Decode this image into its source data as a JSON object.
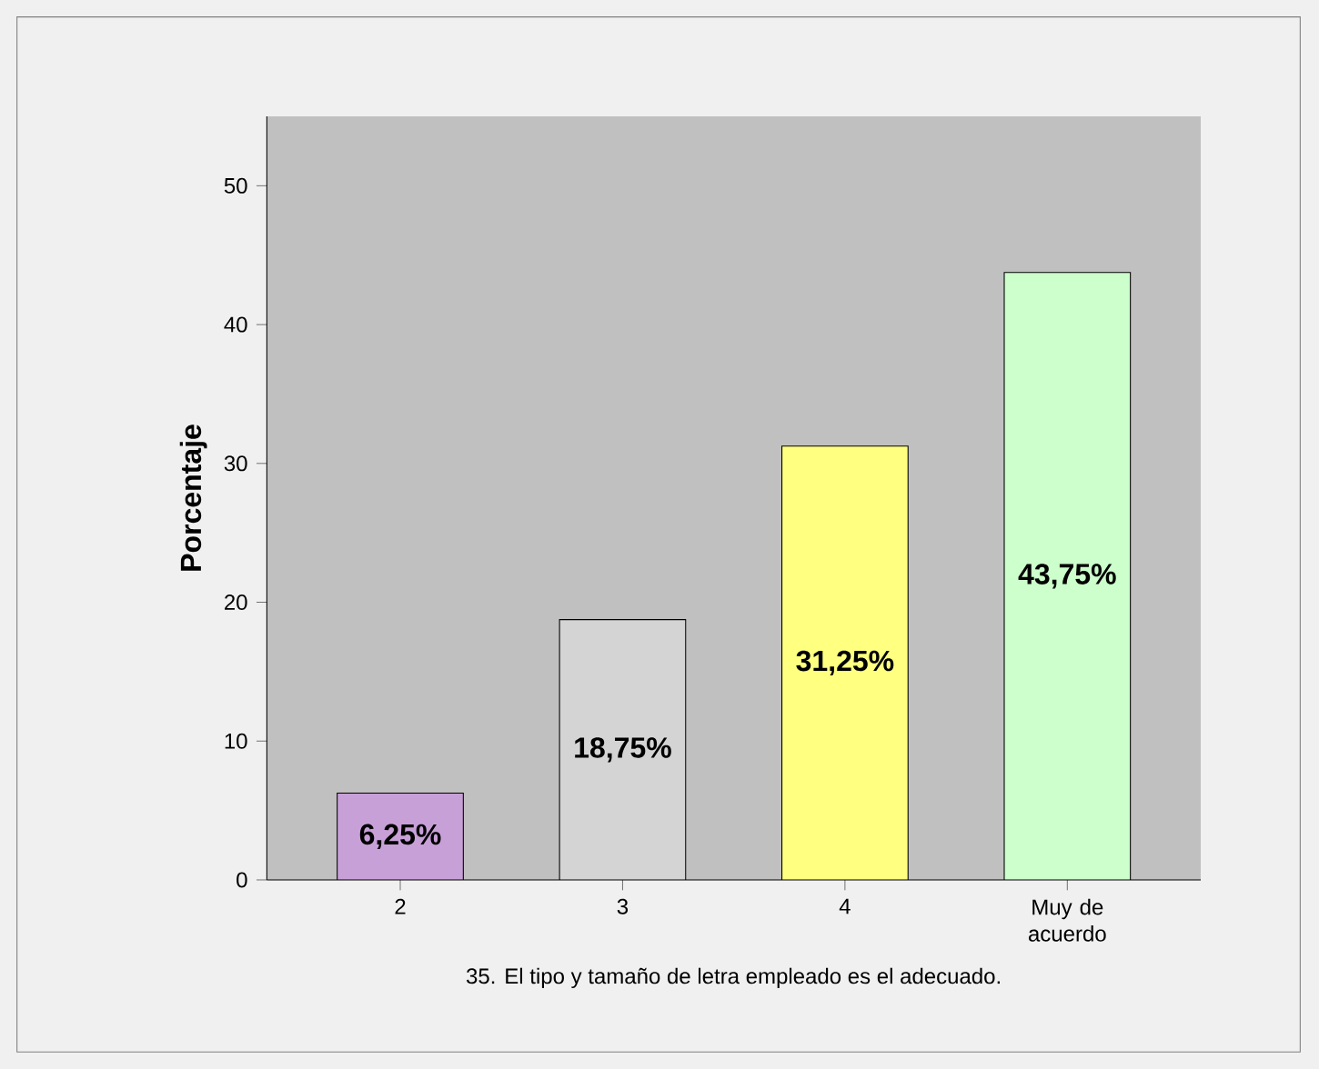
{
  "chart_data": {
    "type": "bar",
    "xlabel": "35. El tipo y tamaño de letra empleado es el adecuado.",
    "ylabel": "Porcentaje",
    "categories": [
      "2",
      "3",
      "4",
      "Muy de acuerdo"
    ],
    "values": [
      6.25,
      18.75,
      31.25,
      43.75
    ],
    "colors": [
      "#c8a0d8",
      "#d4d4d4",
      "#ffff80",
      "#ccffcc"
    ],
    "value_labels": [
      "6,25%",
      "18,75%",
      "31,25%",
      "43,75%"
    ],
    "ylim": [
      0,
      55
    ],
    "yticks": [
      0,
      10,
      20,
      30,
      40,
      50
    ]
  }
}
